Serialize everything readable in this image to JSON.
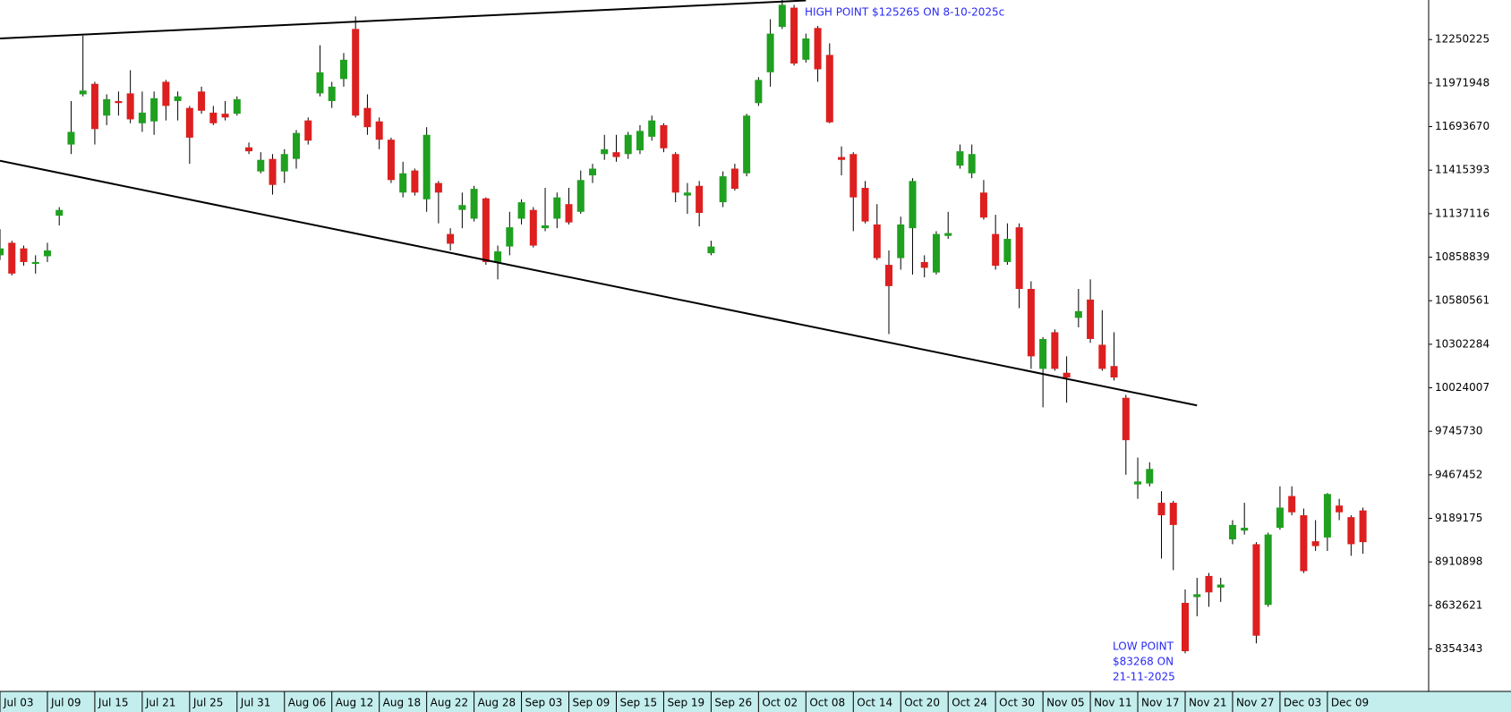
{
  "chart_data": {
    "type": "candlestick",
    "categories": [
      "Jul 03",
      null,
      null,
      null,
      "Jul 09",
      null,
      null,
      null,
      "Jul 15",
      null,
      null,
      null,
      "Jul 21",
      null,
      null,
      null,
      "Jul 25",
      null,
      null,
      null,
      "Jul 31",
      null,
      null,
      null,
      "Aug 06",
      null,
      null,
      null,
      "Aug 12",
      null,
      null,
      null,
      "Aug 18",
      null,
      null,
      null,
      "Aug 22",
      null,
      null,
      null,
      "Aug 28",
      null,
      null,
      null,
      "Sep 03",
      null,
      null,
      null,
      "Sep 09",
      null,
      null,
      null,
      "Sep 15",
      null,
      null,
      null,
      "Sep 19",
      null,
      null,
      null,
      "Sep 26",
      null,
      null,
      null,
      "Oct 02",
      null,
      null,
      null,
      "Oct 08",
      null,
      null,
      null,
      "Oct 14",
      null,
      null,
      null,
      "Oct 20",
      null,
      null,
      null,
      "Oct 24",
      null,
      null,
      null,
      "Oct 30",
      null,
      null,
      null,
      "Nov 05",
      null,
      null,
      null,
      "Nov 11",
      null,
      null,
      null,
      "Nov 17",
      null,
      null,
      null,
      "Nov 21",
      null,
      null,
      null,
      "Nov 27",
      null,
      null,
      null,
      "Dec 03",
      null,
      null,
      null,
      "Dec 09",
      null,
      null,
      null
    ],
    "open": [
      10871000,
      10951000,
      10915000,
      10816000,
      10865000,
      11124000,
      11579000,
      11900000,
      11967000,
      11764000,
      11857000,
      11906000,
      11715000,
      11727000,
      11980000,
      11857000,
      11813000,
      11918000,
      11783000,
      11776000,
      11776000,
      11561000,
      11407000,
      11487000,
      11407000,
      11487000,
      11733000,
      11906000,
      11857000,
      11998000,
      12318000,
      11813000,
      11727000,
      11610000,
      11272000,
      11413000,
      11229000,
      11333000,
      11007000,
      11161000,
      11105000,
      11235000,
      10828000,
      10927000,
      11105000,
      11161000,
      11044000,
      11105000,
      11198000,
      11149000,
      11382000,
      11518000,
      11530000,
      11518000,
      11542000,
      11629000,
      11703000,
      11518000,
      11253000,
      11315000,
      10884000,
      11210000,
      11425000,
      11395000,
      11844000,
      12041000,
      12331000,
      12454000,
      12121000,
      12324000,
      12152000,
      11499000,
      11518000,
      11302000,
      11068000,
      10810000,
      10853000,
      11044000,
      10828000,
      10761000,
      10995000,
      11444000,
      11395000,
      11272000,
      11007000,
      10828000,
      11050000,
      10656000,
      10145000,
      10379000,
      10120000,
      10471000,
      10588000,
      10299000,
      10163000,
      9960000,
      9406000,
      9412000,
      9289000,
      9289000,
      8649000,
      8686000,
      8821000,
      8747000,
      9055000,
      9111000,
      9024000,
      8636000,
      9129000,
      9332000,
      9209000,
      9043000,
      9067000,
      9271000,
      9197000,
      9240000
    ],
    "high": [
      11038000,
      10964000,
      10933000,
      10871000,
      10951000,
      11179000,
      11857000,
      12275000,
      11980000,
      11900000,
      11918000,
      12054000,
      11918000,
      11918000,
      11992000,
      11918000,
      11826000,
      11949000,
      11826000,
      11857000,
      11887000,
      11592000,
      11530000,
      11518000,
      11549000,
      11672000,
      11752000,
      12214000,
      11980000,
      12164000,
      12398000,
      11900000,
      11752000,
      11623000,
      11469000,
      11425000,
      11690000,
      11346000,
      11044000,
      11272000,
      11315000,
      11241000,
      10933000,
      11149000,
      11229000,
      11179000,
      11302000,
      11272000,
      11302000,
      11413000,
      11456000,
      11641000,
      11641000,
      11660000,
      11703000,
      11764000,
      11715000,
      11530000,
      11333000,
      11346000,
      10964000,
      11407000,
      11456000,
      11776000,
      12010000,
      12380000,
      12526500,
      12472000,
      12288000,
      12337000,
      12226000,
      11567000,
      11530000,
      11346000,
      11198000,
      10902000,
      11118000,
      11364000,
      10871000,
      11025000,
      11149000,
      11579000,
      11579000,
      11352000,
      11130000,
      11075000,
      11075000,
      10705000,
      10348000,
      10397000,
      10225000,
      10656000,
      10717000,
      10520000,
      10379000,
      9979000,
      9578000,
      9548000,
      9363000,
      9301000,
      8735000,
      8809000,
      8840000,
      8809000,
      9178000,
      9289000,
      9037000,
      9098000,
      9394000,
      9394000,
      9252000,
      9178000,
      9351000,
      9314000,
      9209000,
      9258000
    ],
    "low": [
      10841000,
      10742000,
      10804000,
      10754000,
      10828000,
      11062000,
      11518000,
      11887000,
      11579000,
      11703000,
      11764000,
      11715000,
      11660000,
      11641000,
      11733000,
      11733000,
      11456000,
      11776000,
      11703000,
      11733000,
      11764000,
      11518000,
      11395000,
      11259000,
      11333000,
      11425000,
      11579000,
      11887000,
      11813000,
      11949000,
      11752000,
      11641000,
      11549000,
      11333000,
      11241000,
      11253000,
      11149000,
      11075000,
      10902000,
      11044000,
      11087000,
      10810000,
      10717000,
      10871000,
      11068000,
      10921000,
      11025000,
      11044000,
      11068000,
      11136000,
      11333000,
      11481000,
      11469000,
      11487000,
      11518000,
      11604000,
      11530000,
      11210000,
      11136000,
      11056000,
      10871000,
      11179000,
      11284000,
      11376000,
      11826000,
      11949000,
      12318000,
      12084000,
      12103000,
      11980000,
      11715000,
      11382000,
      11025000,
      11075000,
      10841000,
      10367000,
      10779000,
      10748000,
      10730000,
      10748000,
      10976000,
      11425000,
      11364000,
      11099000,
      10779000,
      10810000,
      10533000,
      10145000,
      9899000,
      10133000,
      9929000,
      10410000,
      10311000,
      10133000,
      10071000,
      9468000,
      9314000,
      9394000,
      8932000,
      8858000,
      8326800,
      8563000,
      8624000,
      8655000,
      9024000,
      9086000,
      8390000,
      8624000,
      9117000,
      9209000,
      8840000,
      8981000,
      8981000,
      9178000,
      8950000,
      8963000
    ],
    "close": [
      10915000,
      10754000,
      10828000,
      10828000,
      10902000,
      11161000,
      11660000,
      11924000,
      11678000,
      11869000,
      11844000,
      11740000,
      11783000,
      11875000,
      11826000,
      11887000,
      11623000,
      11795000,
      11715000,
      11752000,
      11869000,
      11536000,
      11481000,
      11321000,
      11518000,
      11653000,
      11604000,
      12041000,
      11949000,
      12121000,
      11764000,
      11690000,
      11610000,
      11352000,
      11395000,
      11272000,
      11641000,
      11272000,
      10945000,
      11192000,
      11296000,
      10828000,
      10896000,
      11050000,
      11210000,
      10933000,
      11062000,
      11241000,
      11081000,
      11352000,
      11425000,
      11549000,
      11499000,
      11641000,
      11666000,
      11733000,
      11555000,
      11272000,
      11272000,
      11142000,
      10927000,
      11376000,
      11296000,
      11764000,
      11992000,
      12288000,
      12472000,
      12097000,
      12257000,
      12060000,
      11721000,
      11481000,
      11241000,
      11087000,
      10853000,
      10674000,
      11068000,
      11346000,
      10791000,
      11007000,
      11013000,
      11536000,
      11518000,
      11112000,
      10804000,
      10976000,
      10656000,
      10225000,
      10336000,
      10145000,
      10090000,
      10514000,
      10336000,
      10145000,
      10090000,
      9689000,
      9425000,
      9505000,
      9209000,
      9147000,
      8340000,
      8704000,
      8716000,
      8766000,
      9147000,
      9129000,
      8439000,
      9086000,
      9258000,
      9228000,
      8852000,
      9012000,
      9345000,
      9228000,
      9024000,
      9037000
    ],
    "up_color": "#1fa01f",
    "down_color": "#dd1f1f",
    "ylim": [
      8100000,
      12503000
    ],
    "yticks": [
      12250225,
      11971948,
      11693670,
      11415393,
      11137116,
      10858839,
      10580561,
      10302284,
      10024007,
      9745730,
      9467452,
      9189175,
      8910898,
      8632621,
      8354343
    ],
    "trend_lines": [
      {
        "x": [
          0,
          68
        ],
        "y": [
          12257000,
          12500000
        ]
      },
      {
        "x": [
          0,
          101
        ],
        "y": [
          11475000,
          9911000
        ]
      }
    ],
    "high_annotation": "HIGH POINT $125265 ON 8-10-2025c",
    "low_annotation": [
      "LOW POINT",
      "$83268 ON",
      "21-11-2025"
    ],
    "annotation_color": "#2a2af5"
  }
}
